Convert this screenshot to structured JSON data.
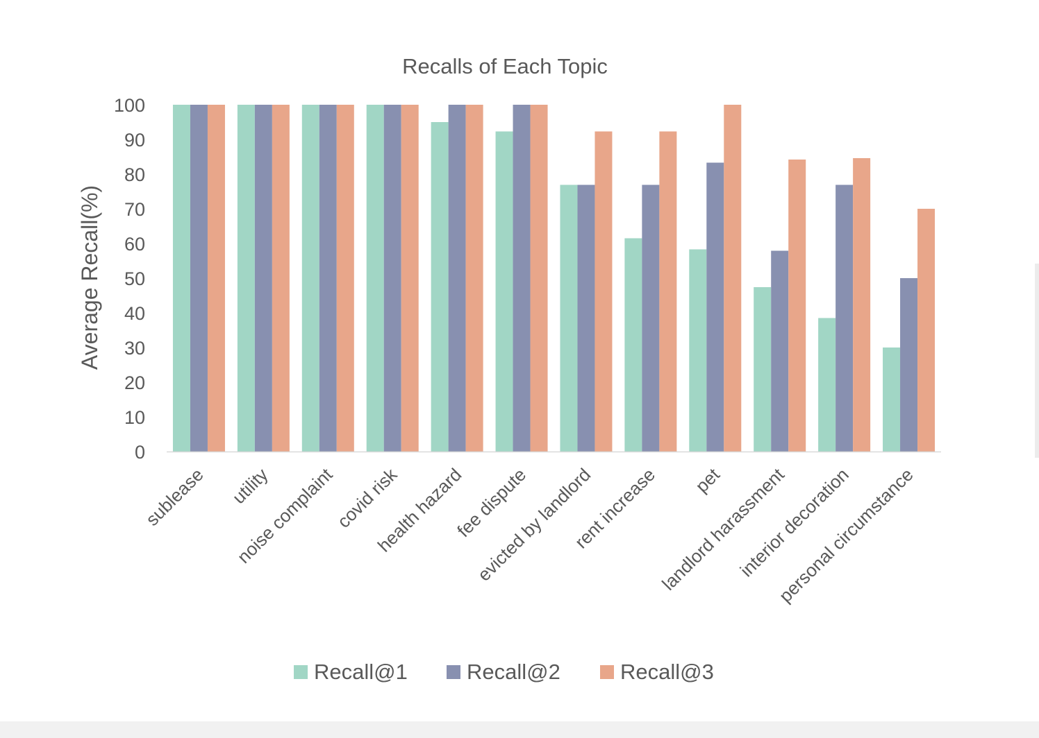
{
  "chart_data": {
    "type": "bar",
    "title": "Recalls of Each Topic",
    "ylabel": "Average Recall(%)",
    "xlabel": "",
    "ylim": [
      0,
      100
    ],
    "yticks": [
      0,
      10,
      20,
      30,
      40,
      50,
      60,
      70,
      80,
      90,
      100
    ],
    "grid": false,
    "legend_position": "bottom",
    "categories": [
      "sublease",
      "utility",
      "noise complaint",
      "covid risk",
      "health hazard",
      "fee dispute",
      "evicted by landlord",
      "rent increase",
      "pet",
      "landlord harassment",
      "interior decoration",
      "personal circumstance"
    ],
    "series": [
      {
        "name": "Recall@1",
        "color": "#a1d6c5",
        "values": [
          100,
          100,
          100,
          100,
          95,
          92.3,
          76.9,
          61.5,
          58.3,
          47.4,
          38.5,
          30
        ]
      },
      {
        "name": "Recall@2",
        "color": "#8890b0",
        "values": [
          100,
          100,
          100,
          100,
          100,
          100,
          76.9,
          76.9,
          83.3,
          57.9,
          76.9,
          50
        ]
      },
      {
        "name": "Recall@3",
        "color": "#e8a68a",
        "values": [
          100,
          100,
          100,
          100,
          100,
          100,
          92.3,
          92.3,
          100,
          84.2,
          84.6,
          70
        ]
      }
    ]
  }
}
